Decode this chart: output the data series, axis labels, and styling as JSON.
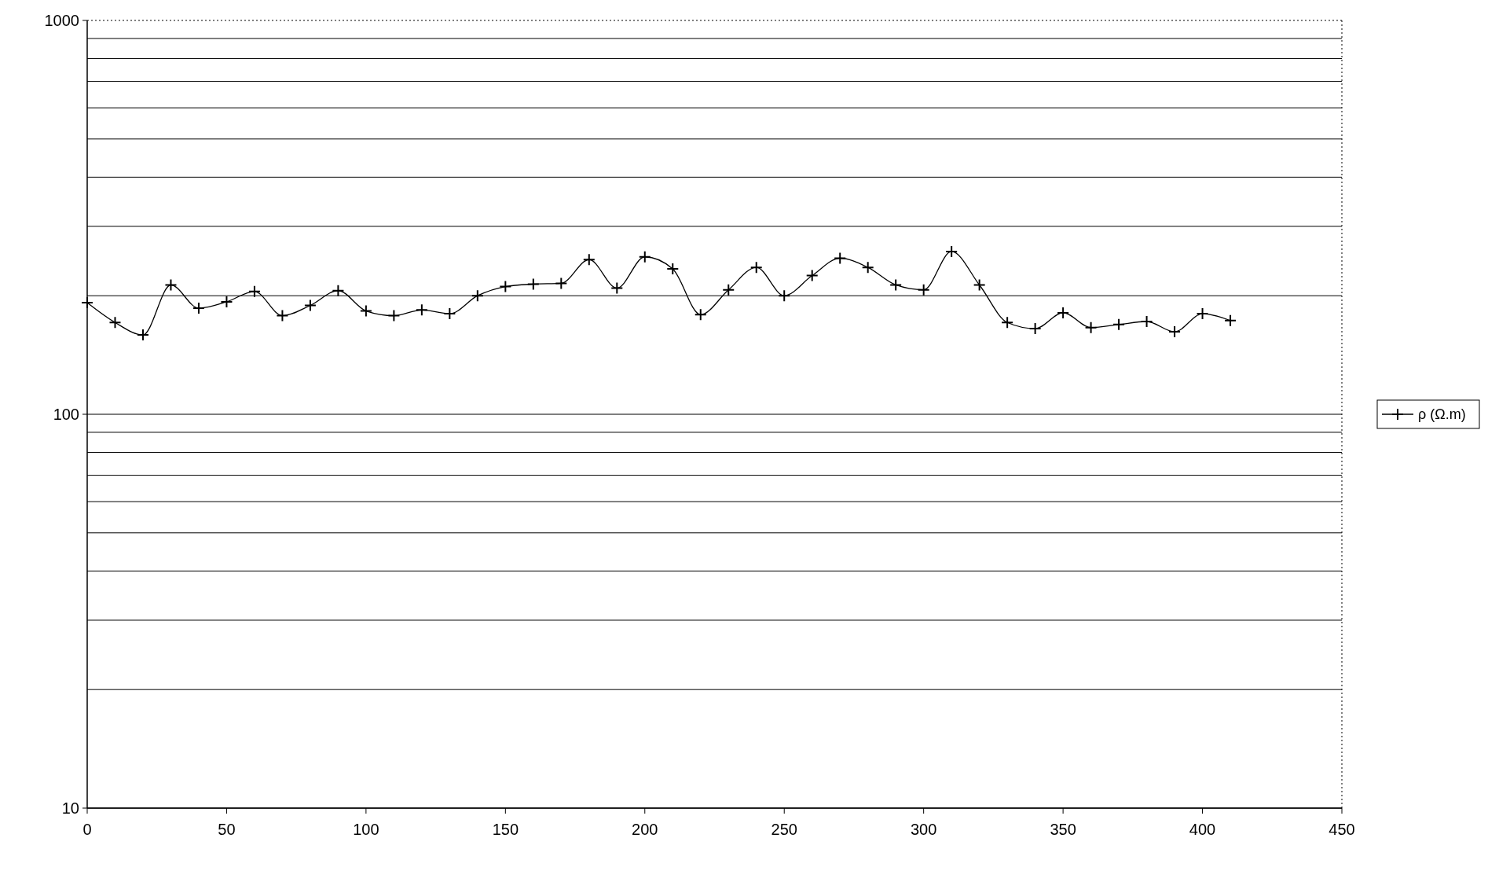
{
  "chart_data": {
    "type": "line",
    "log": "y",
    "grid": "y",
    "legend": "right",
    "marker": "cross",
    "line_style": "solid",
    "xlim": [
      0,
      450
    ],
    "xticks": [
      0,
      50,
      100,
      150,
      200,
      250,
      300,
      350,
      400,
      450
    ],
    "ylim": [
      10,
      1000
    ],
    "yticks": [
      10,
      {
        "value": 20,
        "label": null
      },
      {
        "value": 30,
        "label": null
      },
      {
        "value": 40,
        "label": null
      },
      {
        "value": 50,
        "label": null
      },
      {
        "value": 60,
        "label": null
      },
      {
        "value": 70,
        "label": null
      },
      {
        "value": 80,
        "label": null
      },
      {
        "value": 90,
        "label": null
      },
      100,
      {
        "value": 200,
        "label": null
      },
      {
        "value": 300,
        "label": null
      },
      {
        "value": 400,
        "label": null
      },
      {
        "value": 500,
        "label": null
      },
      {
        "value": 600,
        "label": null
      },
      {
        "value": 700,
        "label": null
      },
      {
        "value": 800,
        "label": null
      },
      {
        "value": 900,
        "label": null
      },
      1000
    ],
    "x": [
      0,
      10,
      20,
      30,
      40,
      50,
      60,
      70,
      80,
      90,
      100,
      110,
      120,
      130,
      140,
      150,
      160,
      170,
      180,
      190,
      200,
      210,
      220,
      230,
      240,
      250,
      260,
      270,
      280,
      290,
      300,
      310,
      320,
      330,
      340,
      350,
      360,
      370,
      380,
      390,
      400,
      410
    ],
    "series": [
      {
        "name": "ρ (Ω.m)",
        "color": "#000000",
        "values": [
          192,
          171,
          159,
          213,
          186,
          193,
          205,
          178,
          189,
          206,
          183,
          178,
          184,
          180,
          200,
          211,
          214,
          215,
          247,
          209,
          251,
          234,
          179,
          207,
          236,
          200,
          225,
          249,
          236,
          213,
          207,
          259,
          213,
          171,
          165,
          181,
          166,
          169,
          172,
          162,
          180,
          173
        ]
      }
    ]
  }
}
